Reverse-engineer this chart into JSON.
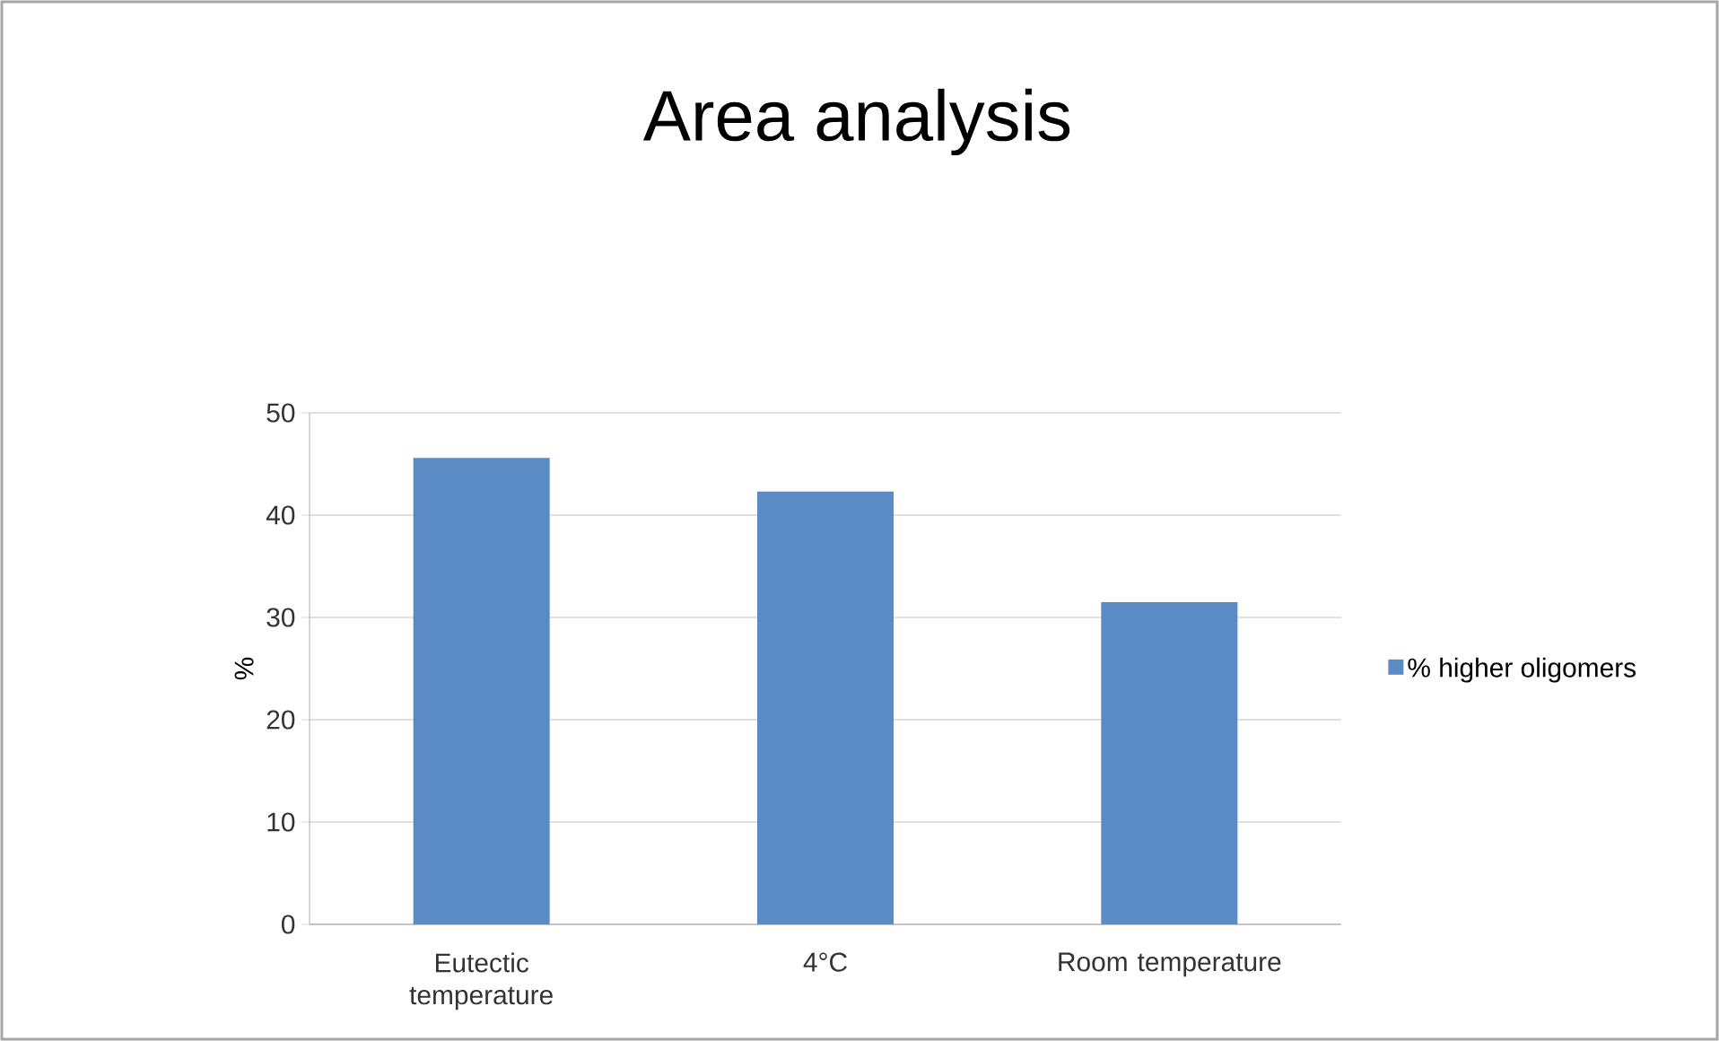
{
  "chart_data": {
    "type": "bar",
    "title": "Area analysis",
    "ylabel": "%",
    "categories": [
      "Eutectic temperature",
      "4°C",
      "Room temperature"
    ],
    "series": [
      {
        "name": "% higher oligomers",
        "color": "#5b8bc4",
        "values": [
          45.6,
          42.3,
          31.5
        ]
      }
    ],
    "ylim": [
      0,
      50
    ],
    "yticks": [
      0,
      10,
      20,
      30,
      40,
      50
    ],
    "grid": "y",
    "legend": "right"
  }
}
